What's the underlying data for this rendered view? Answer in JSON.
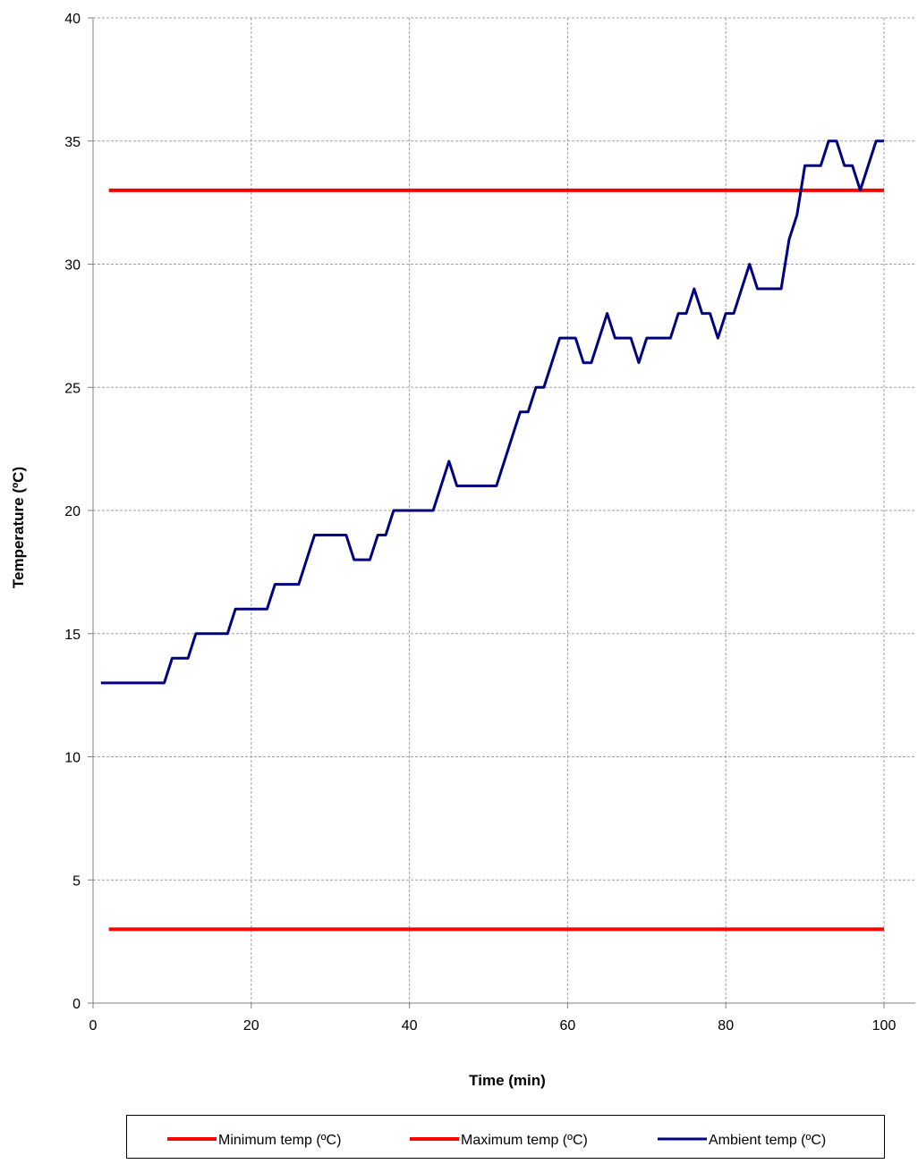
{
  "chart_data": {
    "type": "line",
    "x_label": "Time (min)",
    "y_label": "Temperature (ºC)",
    "xlim": [
      0,
      104
    ],
    "xticks": [
      0,
      20,
      40,
      60,
      80,
      100
    ],
    "ylim": [
      0,
      40
    ],
    "yticks": [
      0,
      5,
      10,
      15,
      20,
      25,
      30,
      35,
      40
    ],
    "grid": true,
    "legend": "bottom",
    "series": [
      {
        "name": "Minimum temp (ºC)",
        "color": "#ff0000",
        "x": [
          2,
          100
        ],
        "values": [
          3,
          3
        ]
      },
      {
        "name": "Maximum temp (ºC)",
        "color": "#ff0000",
        "x": [
          2,
          100
        ],
        "values": [
          33,
          33
        ]
      },
      {
        "name": "Ambient temp (ºC)",
        "color": "#000080",
        "x": [
          1,
          2,
          3,
          4,
          5,
          6,
          7,
          8,
          9,
          10,
          11,
          12,
          13,
          14,
          15,
          16,
          17,
          18,
          19,
          20,
          21,
          22,
          23,
          24,
          25,
          26,
          27,
          28,
          29,
          30,
          31,
          32,
          33,
          34,
          35,
          36,
          37,
          38,
          39,
          40,
          41,
          42,
          43,
          44,
          45,
          46,
          47,
          48,
          49,
          50,
          51,
          52,
          53,
          54,
          55,
          56,
          57,
          58,
          59,
          60,
          61,
          62,
          63,
          64,
          65,
          66,
          67,
          68,
          69,
          70,
          71,
          72,
          73,
          74,
          75,
          76,
          77,
          78,
          79,
          80,
          81,
          82,
          83,
          84,
          85,
          86,
          87,
          88,
          89,
          90,
          91,
          92,
          93,
          94,
          95,
          96,
          97,
          98,
          99,
          100
        ],
        "values": [
          13,
          13,
          13,
          13,
          13,
          13,
          13,
          13,
          13,
          14,
          14,
          14,
          15,
          15,
          15,
          15,
          15,
          16,
          16,
          16,
          16,
          16,
          17,
          17,
          17,
          17,
          18,
          19,
          19,
          19,
          19,
          19,
          18,
          18,
          18,
          19,
          19,
          20,
          20,
          20,
          20,
          20,
          20,
          21,
          22,
          21,
          21,
          21,
          21,
          21,
          21,
          22,
          23,
          24,
          24,
          25,
          25,
          26,
          27,
          27,
          27,
          26,
          26,
          27,
          28,
          27,
          27,
          27,
          26,
          27,
          27,
          27,
          27,
          28,
          28,
          29,
          28,
          28,
          27,
          28,
          28,
          29,
          30,
          29,
          29,
          29,
          29,
          31,
          32,
          34,
          34,
          34,
          35,
          35,
          34,
          34,
          33,
          34,
          35,
          35
        ]
      }
    ]
  }
}
